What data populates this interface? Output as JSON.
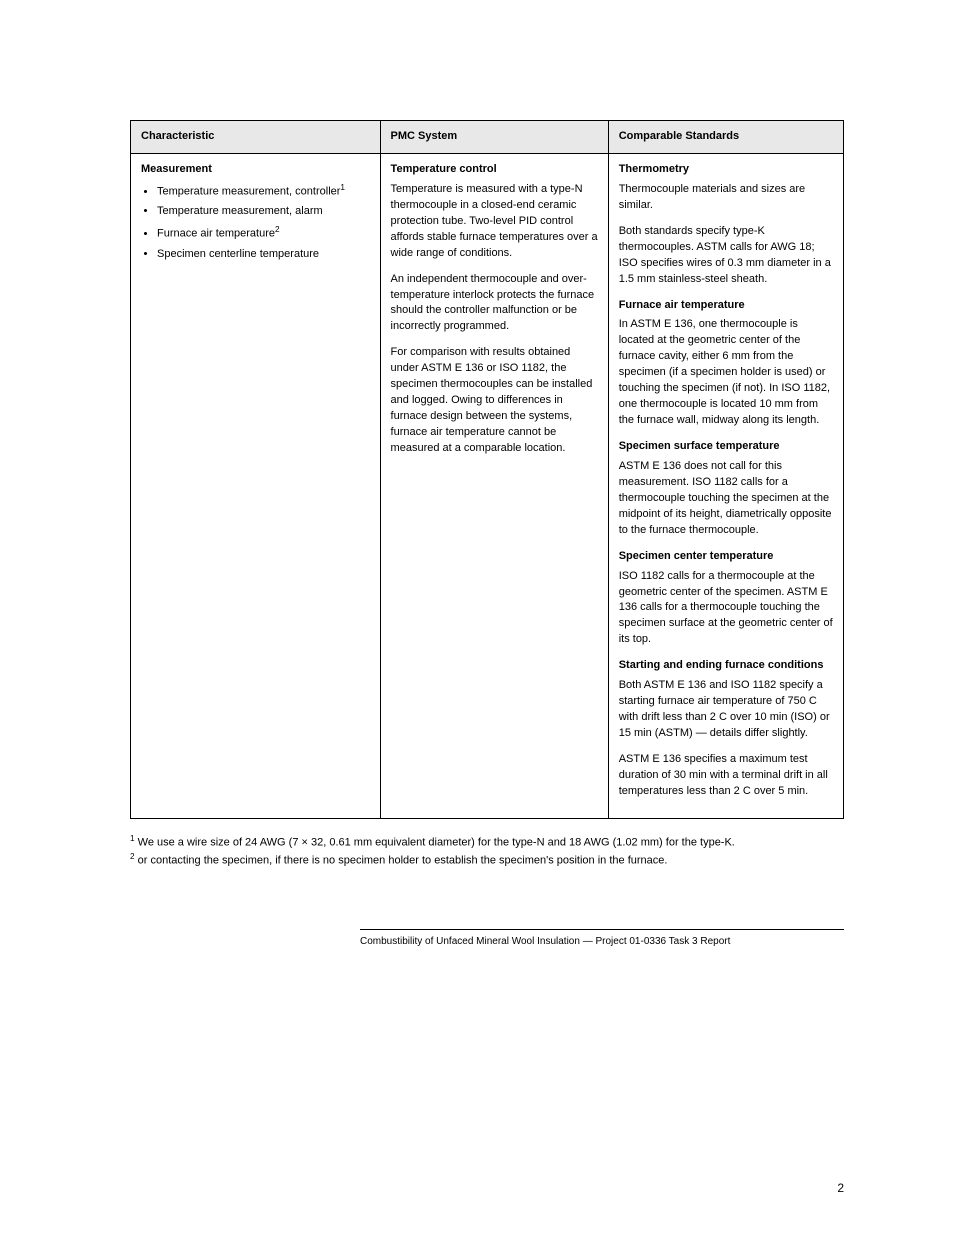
{
  "table": {
    "headers": [
      "Characteristic",
      "PMC System",
      "Comparable Standards"
    ],
    "row": {
      "char_title": "Measurement",
      "char_items": [
        "Temperature measurement, controller",
        "Temperature measurement, alarm",
        "Furnace air temperature",
        "Specimen centerline temperature"
      ],
      "pmc_title": "Temperature control",
      "pmc_paras": [
        "Temperature is measured with a type-N thermocouple in a closed-end ceramic protection tube. Two-level PID control affords stable furnace temperatures over a wide range of conditions.",
        "An independent thermocouple and over-temperature interlock protects the furnace should the controller malfunction or be incorrectly programmed.",
        "For comparison with results obtained under ASTM E 136 or ISO 1182, the specimen thermocouples can be installed and logged. Owing to differences in furnace design between the systems, furnace air temperature cannot be measured at a comparable location."
      ],
      "comp_thermo_title": "Thermometry",
      "comp_thermo_paras": [
        "Thermocouple materials and sizes are similar.",
        "Both standards specify type-K thermocouples. ASTM calls for AWG 18; ISO specifies wires of 0.3 mm diameter in a 1.5 mm stainless-steel sheath."
      ],
      "comp_air_title": "Furnace air temperature",
      "comp_air_text": "In ASTM E 136, one thermocouple is located at the geometric center of the furnace cavity, either 6 mm from the specimen (if a specimen holder is used) or touching the specimen (if not). In ISO 1182, one thermocouple is located 10 mm from the furnace wall, midway along its length.",
      "comp_surf_title": "Specimen surface temperature",
      "comp_surf_text": "ASTM E 136 does not call for this measurement. ISO 1182 calls for a thermocouple touching the specimen at the midpoint of its height, diametrically opposite to the furnace thermocouple.",
      "comp_center_title": "Specimen center temperature",
      "comp_center_text": "ISO 1182 calls for a thermocouple at the geometric center of the specimen. ASTM E 136 calls for a thermocouple touching the specimen surface at the geometric center of its top.",
      "comp_cond_title": "Starting and ending furnace conditions",
      "comp_cond_start": "Both ASTM E 136 and ISO 1182 specify a starting furnace air temperature of 750 C with drift less than 2 C over 10 min (ISO) or 15 min (ASTM) — details differ slightly.",
      "comp_cond_end": "ASTM E 136 specifies a maximum test duration of 30 min with a terminal drift in all temperatures less than 2 C over 5 min.",
      "char_note1_ref": "1",
      "char_note2_ref": "2",
      "comp_gte": "≥ ",
      "comp_deg": "°"
    }
  },
  "footnotes": [
    {
      "n": "1",
      "text": "We use a wire size of 24 AWG (7 × 32, 0.61 mm equivalent diameter) for the type-N and 18 AWG (1.02 mm) for the type-K."
    },
    {
      "n": "2",
      "text": "or contacting the specimen, if there is no specimen holder to establish the specimen's position in the furnace."
    }
  ],
  "rule_label": "",
  "footer": "Combustibility of Unfaced Mineral Wool Insulation — Project 01-0336 Task 3 Report",
  "page_number": "2"
}
